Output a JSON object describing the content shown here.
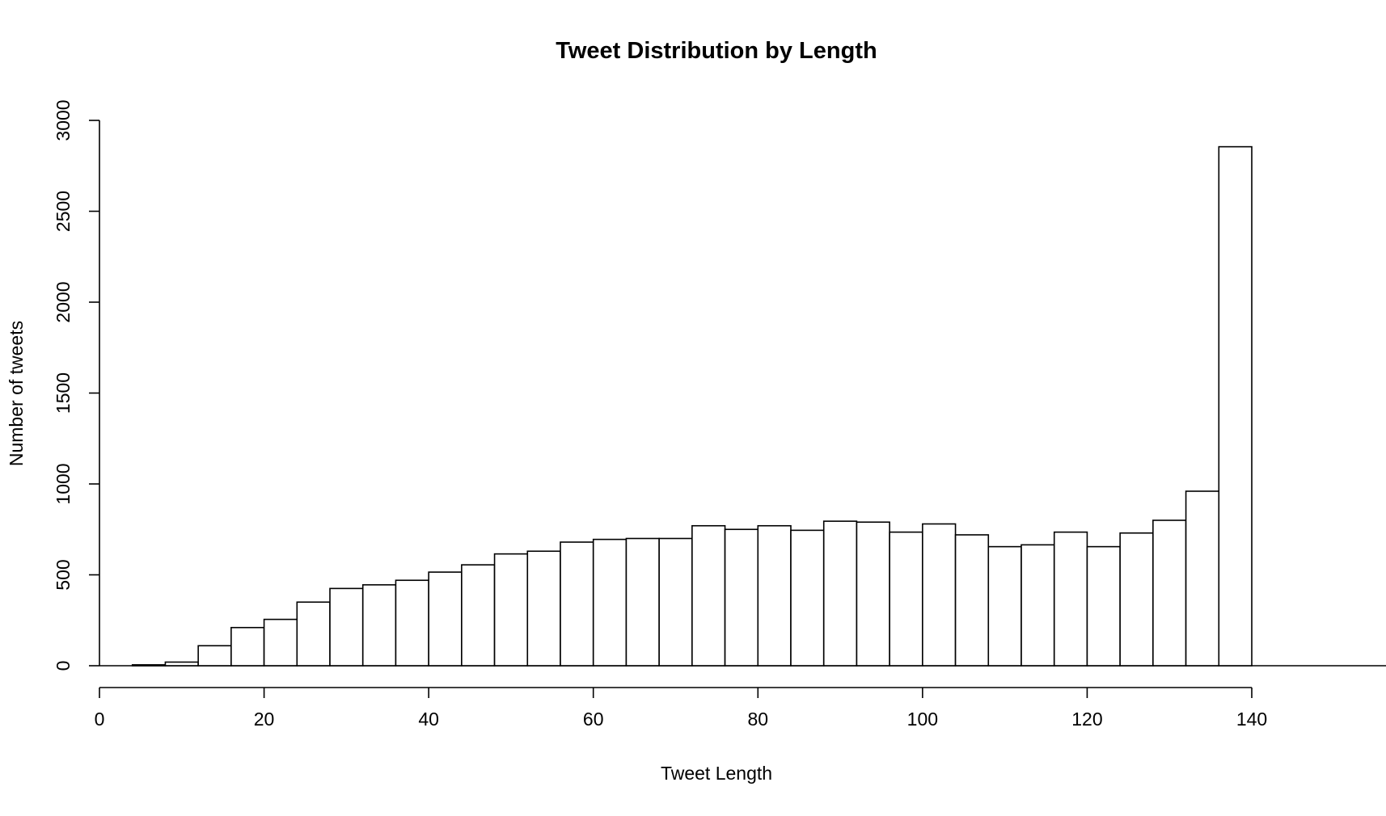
{
  "chart_data": {
    "type": "bar",
    "subtype": "histogram",
    "title": "Tweet Distribution by Length",
    "xlabel": "Tweet Length",
    "ylabel": "Number of tweets",
    "xlim": [
      0,
      140
    ],
    "ylim": [
      0,
      3000
    ],
    "bin_width": 4,
    "bin_edges_start": [
      0,
      4,
      8,
      12,
      16,
      20,
      24,
      28,
      32,
      36,
      40,
      44,
      48,
      52,
      56,
      60,
      64,
      68,
      72,
      76,
      80,
      84,
      88,
      92,
      96,
      100,
      104,
      108,
      112,
      116,
      120,
      124,
      128,
      132,
      136
    ],
    "values": [
      0,
      5,
      20,
      110,
      210,
      255,
      350,
      425,
      445,
      470,
      515,
      555,
      615,
      630,
      680,
      695,
      700,
      700,
      770,
      750,
      770,
      745,
      795,
      790,
      735,
      780,
      720,
      655,
      665,
      735,
      655,
      730,
      800,
      960,
      2855
    ],
    "x_ticks": [
      "0",
      "20",
      "40",
      "60",
      "80",
      "100",
      "120",
      "140"
    ],
    "y_ticks": [
      "0",
      "500",
      "1000",
      "1500",
      "2000",
      "2500",
      "3000"
    ],
    "colors": {
      "bar_fill": "#ffffff",
      "bar_stroke": "#000000"
    },
    "grid": false,
    "legend": "none"
  }
}
